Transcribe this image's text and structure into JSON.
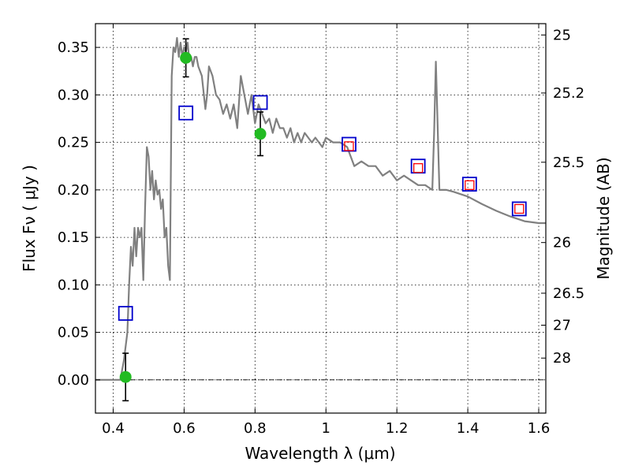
{
  "chart_data": {
    "type": "line",
    "xlabel": "Wavelength  λ (μm)",
    "ylabel": "Flux  Fν  ( μJy )",
    "y2label": "Magnitude (AB)",
    "xlim": [
      0.35,
      1.62
    ],
    "ylim": [
      -0.035,
      0.375
    ],
    "grid": true,
    "x_ticks": [
      0.4,
      0.6,
      0.8,
      1.0,
      1.2,
      1.4,
      1.6
    ],
    "x_tick_labels": [
      "0.4",
      "0.6",
      "0.8",
      "1",
      "1.2",
      "1.4",
      "1.6"
    ],
    "y_ticks": [
      0.0,
      0.05,
      0.1,
      0.15,
      0.2,
      0.25,
      0.3,
      0.35
    ],
    "y_tick_labels": [
      "0.00",
      "0.05",
      "0.10",
      "0.15",
      "0.20",
      "0.25",
      "0.30",
      "0.35"
    ],
    "y2_ticks": [
      {
        "label": "25",
        "mag": 25.0
      },
      {
        "label": "25.2",
        "mag": 25.2
      },
      {
        "label": "25.5",
        "mag": 25.5
      },
      {
        "label": "26",
        "mag": 26.0
      },
      {
        "label": "26.5",
        "mag": 26.5
      },
      {
        "label": "27",
        "mag": 27.0
      },
      {
        "label": "28",
        "mag": 28.0
      }
    ],
    "colors": {
      "model": "#808080",
      "observed": "#22bb22",
      "model_open": "#0000cc",
      "model_inner": "#ff0000",
      "zero_line": "#000000"
    },
    "series": [
      {
        "style": "line",
        "x": [
          0.35,
          0.42,
          0.43,
          0.44,
          0.445,
          0.45,
          0.455,
          0.46,
          0.465,
          0.47,
          0.475,
          0.48,
          0.485,
          0.49,
          0.495,
          0.5,
          0.505,
          0.51,
          0.515,
          0.52,
          0.525,
          0.53,
          0.535,
          0.54,
          0.545,
          0.55,
          0.555,
          0.56,
          0.565,
          0.57,
          0.575,
          0.58,
          0.585,
          0.59,
          0.595,
          0.6,
          0.605,
          0.61,
          0.615,
          0.62,
          0.625,
          0.63,
          0.635,
          0.64,
          0.65,
          0.66,
          0.665,
          0.67,
          0.68,
          0.69,
          0.7,
          0.71,
          0.72,
          0.73,
          0.74,
          0.75,
          0.76,
          0.77,
          0.78,
          0.79,
          0.8,
          0.81,
          0.82,
          0.83,
          0.84,
          0.85,
          0.86,
          0.87,
          0.88,
          0.89,
          0.9,
          0.91,
          0.92,
          0.93,
          0.94,
          0.95,
          0.96,
          0.97,
          0.98,
          0.99,
          1.0,
          1.02,
          1.04,
          1.06,
          1.08,
          1.1,
          1.12,
          1.14,
          1.16,
          1.18,
          1.2,
          1.22,
          1.24,
          1.26,
          1.28,
          1.3,
          1.305,
          1.31,
          1.32,
          1.34,
          1.36,
          1.4,
          1.44,
          1.48,
          1.52,
          1.56,
          1.6,
          1.62
        ],
        "y": [
          0.0,
          0.0,
          0.02,
          0.05,
          0.1,
          0.14,
          0.12,
          0.16,
          0.13,
          0.16,
          0.15,
          0.16,
          0.105,
          0.18,
          0.245,
          0.235,
          0.2,
          0.22,
          0.19,
          0.21,
          0.195,
          0.2,
          0.18,
          0.19,
          0.15,
          0.16,
          0.12,
          0.105,
          0.32,
          0.35,
          0.345,
          0.36,
          0.34,
          0.355,
          0.34,
          0.35,
          0.345,
          0.355,
          0.335,
          0.34,
          0.33,
          0.34,
          0.34,
          0.33,
          0.32,
          0.285,
          0.3,
          0.33,
          0.32,
          0.3,
          0.295,
          0.28,
          0.29,
          0.275,
          0.29,
          0.265,
          0.32,
          0.3,
          0.28,
          0.3,
          0.27,
          0.29,
          0.28,
          0.27,
          0.275,
          0.26,
          0.275,
          0.265,
          0.265,
          0.255,
          0.265,
          0.25,
          0.26,
          0.25,
          0.26,
          0.255,
          0.25,
          0.255,
          0.25,
          0.245,
          0.255,
          0.25,
          0.25,
          0.245,
          0.225,
          0.23,
          0.225,
          0.225,
          0.215,
          0.22,
          0.21,
          0.215,
          0.21,
          0.205,
          0.205,
          0.2,
          0.26,
          0.335,
          0.2,
          0.2,
          0.198,
          0.193,
          0.185,
          0.178,
          0.172,
          0.167,
          0.165,
          0.165
        ]
      },
      {
        "style": "errorbar",
        "x": [
          0.435,
          0.605,
          0.815
        ],
        "y": [
          0.003,
          0.339,
          0.259
        ],
        "yerr": [
          0.025,
          0.02,
          0.023
        ]
      },
      {
        "style": "open_square",
        "x": [
          0.435,
          0.605,
          0.815,
          1.065,
          1.26,
          1.405,
          1.545
        ],
        "y": [
          0.07,
          0.281,
          0.292,
          0.248,
          0.225,
          0.206,
          0.18
        ]
      },
      {
        "style": "inner_square",
        "x": [
          1.065,
          1.26,
          1.405,
          1.545
        ],
        "y": [
          0.246,
          0.223,
          0.205,
          0.18
        ]
      }
    ]
  }
}
